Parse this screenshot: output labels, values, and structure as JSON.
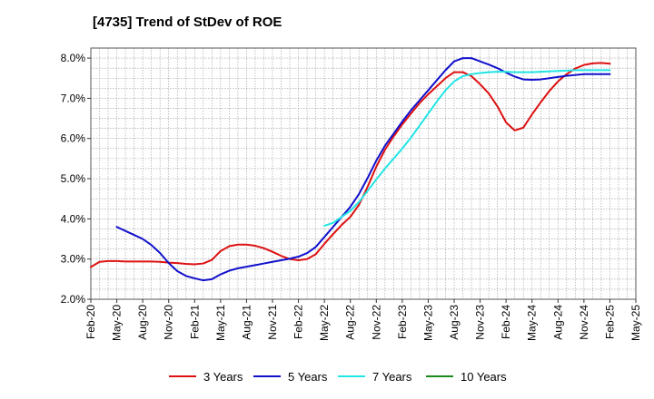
{
  "chart_data": {
    "type": "line",
    "title": "[4735]  Trend of StDev of ROE",
    "xlabel": "",
    "ylabel": "",
    "ylim": [
      2.0,
      8.25
    ],
    "y_ticks": [
      "2.0%",
      "3.0%",
      "4.0%",
      "5.0%",
      "6.0%",
      "7.0%",
      "8.0%"
    ],
    "y_tick_values": [
      2,
      3,
      4,
      5,
      6,
      7,
      8
    ],
    "x_ticks": [
      "Feb-20",
      "May-20",
      "Aug-20",
      "Nov-20",
      "Feb-21",
      "May-21",
      "Aug-21",
      "Nov-21",
      "Feb-22",
      "May-22",
      "Aug-22",
      "Nov-22",
      "Feb-23",
      "May-23",
      "Aug-23",
      "Nov-23",
      "Feb-24",
      "May-24",
      "Aug-24",
      "Nov-24",
      "Feb-25",
      "May-25"
    ],
    "x_start": "Feb-20",
    "x_end": "May-25",
    "grid": true,
    "legend_position": "bottom",
    "series": [
      {
        "name": "3 Years",
        "color": "#dd1111",
        "points": [
          [
            "Feb-20",
            2.8
          ],
          [
            "Mar-20",
            2.93
          ],
          [
            "Apr-20",
            2.95
          ],
          [
            "May-20",
            2.95
          ],
          [
            "Jun-20",
            2.94
          ],
          [
            "Jul-20",
            2.94
          ],
          [
            "Aug-20",
            2.94
          ],
          [
            "Sep-20",
            2.94
          ],
          [
            "Oct-20",
            2.93
          ],
          [
            "Nov-20",
            2.91
          ],
          [
            "Dec-20",
            2.9
          ],
          [
            "Jan-21",
            2.88
          ],
          [
            "Feb-21",
            2.87
          ],
          [
            "Mar-21",
            2.89
          ],
          [
            "Apr-21",
            2.98
          ],
          [
            "May-21",
            3.2
          ],
          [
            "Jun-21",
            3.32
          ],
          [
            "Jul-21",
            3.36
          ],
          [
            "Aug-21",
            3.36
          ],
          [
            "Sep-21",
            3.33
          ],
          [
            "Oct-21",
            3.27
          ],
          [
            "Nov-21",
            3.18
          ],
          [
            "Dec-21",
            3.08
          ],
          [
            "Jan-22",
            3.0
          ],
          [
            "Feb-22",
            2.97
          ],
          [
            "Mar-22",
            3.0
          ],
          [
            "Apr-22",
            3.12
          ],
          [
            "May-22",
            3.38
          ],
          [
            "Jun-22",
            3.62
          ],
          [
            "Jul-22",
            3.85
          ],
          [
            "Aug-22",
            4.05
          ],
          [
            "Sep-22",
            4.35
          ],
          [
            "Oct-22",
            4.8
          ],
          [
            "Nov-22",
            5.3
          ],
          [
            "Dec-22",
            5.72
          ],
          [
            "Jan-23",
            6.05
          ],
          [
            "Feb-23",
            6.35
          ],
          [
            "Mar-23",
            6.62
          ],
          [
            "Apr-23",
            6.88
          ],
          [
            "May-23",
            7.1
          ],
          [
            "Jun-23",
            7.3
          ],
          [
            "Jul-23",
            7.5
          ],
          [
            "Aug-23",
            7.65
          ],
          [
            "Sep-23",
            7.65
          ],
          [
            "Oct-23",
            7.55
          ],
          [
            "Nov-23",
            7.35
          ],
          [
            "Dec-23",
            7.12
          ],
          [
            "Jan-24",
            6.8
          ],
          [
            "Feb-24",
            6.4
          ],
          [
            "Mar-24",
            6.2
          ],
          [
            "Apr-24",
            6.27
          ],
          [
            "May-24",
            6.6
          ],
          [
            "Jun-24",
            6.9
          ],
          [
            "Jul-24",
            7.18
          ],
          [
            "Aug-24",
            7.42
          ],
          [
            "Sep-24",
            7.6
          ],
          [
            "Oct-24",
            7.74
          ],
          [
            "Nov-24",
            7.83
          ],
          [
            "Dec-24",
            7.87
          ],
          [
            "Jan-25",
            7.88
          ],
          [
            "Feb-25",
            7.86
          ]
        ]
      },
      {
        "name": "5 Years",
        "color": "#1111cc",
        "points": [
          [
            "May-20",
            3.8
          ],
          [
            "Jun-20",
            3.7
          ],
          [
            "Jul-20",
            3.6
          ],
          [
            "Aug-20",
            3.5
          ],
          [
            "Sep-20",
            3.35
          ],
          [
            "Oct-20",
            3.15
          ],
          [
            "Nov-20",
            2.9
          ],
          [
            "Dec-20",
            2.7
          ],
          [
            "Jan-21",
            2.58
          ],
          [
            "Feb-21",
            2.52
          ],
          [
            "Mar-21",
            2.47
          ],
          [
            "Apr-21",
            2.5
          ],
          [
            "May-21",
            2.62
          ],
          [
            "Jun-21",
            2.71
          ],
          [
            "Jul-21",
            2.77
          ],
          [
            "Aug-21",
            2.81
          ],
          [
            "Sep-21",
            2.85
          ],
          [
            "Oct-21",
            2.89
          ],
          [
            "Nov-21",
            2.93
          ],
          [
            "Dec-21",
            2.97
          ],
          [
            "Jan-22",
            3.01
          ],
          [
            "Feb-22",
            3.06
          ],
          [
            "Mar-22",
            3.15
          ],
          [
            "Apr-22",
            3.3
          ],
          [
            "May-22",
            3.55
          ],
          [
            "Jun-22",
            3.8
          ],
          [
            "Jul-22",
            4.05
          ],
          [
            "Aug-22",
            4.3
          ],
          [
            "Sep-22",
            4.62
          ],
          [
            "Oct-22",
            5.02
          ],
          [
            "Nov-22",
            5.45
          ],
          [
            "Dec-22",
            5.82
          ],
          [
            "Jan-23",
            6.12
          ],
          [
            "Feb-23",
            6.42
          ],
          [
            "Mar-23",
            6.7
          ],
          [
            "Apr-23",
            6.95
          ],
          [
            "May-23",
            7.2
          ],
          [
            "Jun-23",
            7.45
          ],
          [
            "Jul-23",
            7.7
          ],
          [
            "Aug-23",
            7.92
          ],
          [
            "Sep-23",
            8.0
          ],
          [
            "Oct-23",
            8.0
          ],
          [
            "Nov-23",
            7.92
          ],
          [
            "Dec-23",
            7.84
          ],
          [
            "Jan-24",
            7.75
          ],
          [
            "Feb-24",
            7.64
          ],
          [
            "Mar-24",
            7.54
          ],
          [
            "Apr-24",
            7.47
          ],
          [
            "May-24",
            7.46
          ],
          [
            "Jun-24",
            7.47
          ],
          [
            "Jul-24",
            7.5
          ],
          [
            "Aug-24",
            7.53
          ],
          [
            "Sep-24",
            7.56
          ],
          [
            "Oct-24",
            7.58
          ],
          [
            "Nov-24",
            7.6
          ],
          [
            "Dec-24",
            7.6
          ],
          [
            "Jan-25",
            7.6
          ],
          [
            "Feb-25",
            7.6
          ]
        ]
      },
      {
        "name": "7 Years",
        "color": "#22e5e5",
        "points": [
          [
            "May-22",
            3.83
          ],
          [
            "Jun-22",
            3.9
          ],
          [
            "Jul-22",
            4.05
          ],
          [
            "Aug-22",
            4.2
          ],
          [
            "Sep-22",
            4.42
          ],
          [
            "Oct-22",
            4.7
          ],
          [
            "Nov-22",
            4.98
          ],
          [
            "Dec-22",
            5.25
          ],
          [
            "Jan-23",
            5.5
          ],
          [
            "Feb-23",
            5.75
          ],
          [
            "Mar-23",
            6.02
          ],
          [
            "Apr-23",
            6.32
          ],
          [
            "May-23",
            6.62
          ],
          [
            "Jun-23",
            6.92
          ],
          [
            "Jul-23",
            7.2
          ],
          [
            "Aug-23",
            7.42
          ],
          [
            "Sep-23",
            7.55
          ],
          [
            "Oct-23",
            7.6
          ],
          [
            "Nov-23",
            7.63
          ],
          [
            "Dec-23",
            7.65
          ],
          [
            "Jan-24",
            7.66
          ],
          [
            "Feb-24",
            7.66
          ],
          [
            "Mar-24",
            7.65
          ],
          [
            "Apr-24",
            7.65
          ],
          [
            "May-24",
            7.65
          ],
          [
            "Jun-24",
            7.66
          ],
          [
            "Jul-24",
            7.67
          ],
          [
            "Aug-24",
            7.68
          ],
          [
            "Sep-24",
            7.69
          ],
          [
            "Oct-24",
            7.7
          ],
          [
            "Nov-24",
            7.7
          ],
          [
            "Dec-24",
            7.7
          ],
          [
            "Jan-25",
            7.7
          ],
          [
            "Feb-25",
            7.7
          ]
        ]
      },
      {
        "name": "10 Years",
        "color": "#1a8a1a",
        "points": []
      }
    ]
  }
}
